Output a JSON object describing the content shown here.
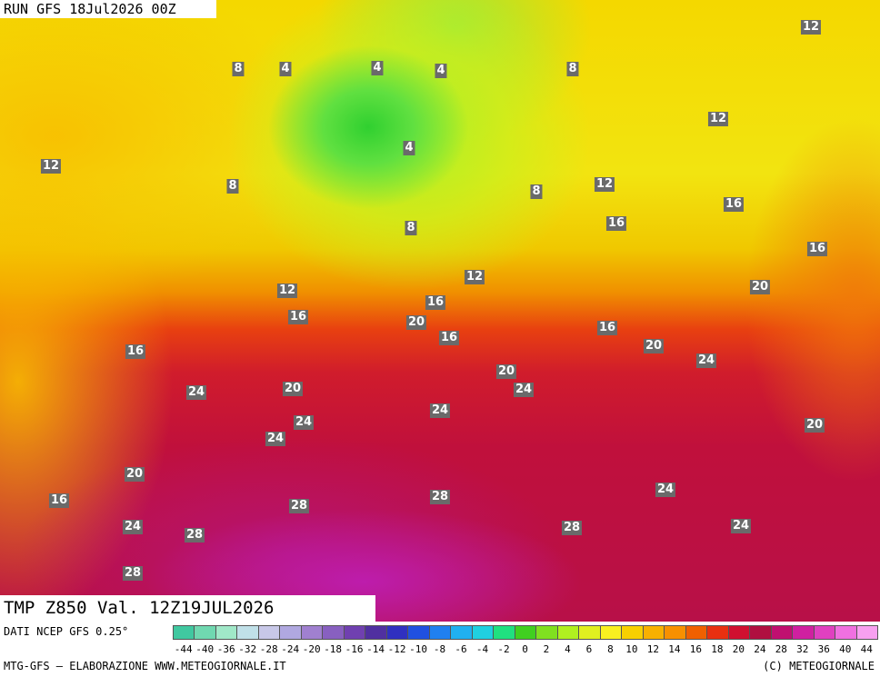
{
  "header": {
    "run": "RUN GFS 18Jul2026 00Z",
    "field": "TMP Z850 Val. 12Z19JUL2026"
  },
  "contour_labels": [
    12,
    8,
    4,
    4,
    4,
    8,
    12,
    12,
    4,
    8,
    8,
    12,
    16,
    8,
    16,
    16,
    12,
    12,
    16,
    20,
    16,
    20,
    16,
    16,
    16,
    20,
    24,
    24,
    20,
    20,
    24,
    24,
    24,
    24,
    20,
    20,
    24,
    28,
    16,
    28,
    24,
    28,
    28,
    24,
    28
  ],
  "scale": {
    "ticks": [
      -44,
      -40,
      -36,
      -32,
      -28,
      -24,
      -20,
      -18,
      -16,
      -14,
      -12,
      -10,
      -8,
      -6,
      -4,
      -2,
      0,
      2,
      4,
      6,
      8,
      10,
      12,
      14,
      16,
      18,
      20,
      24,
      28,
      32,
      36,
      40,
      44
    ],
    "colors": [
      "#40c8a0",
      "#70d8b0",
      "#a0e8c8",
      "#c0e0e8",
      "#c8c8e8",
      "#b0a8e0",
      "#a080d0",
      "#8860c0",
      "#7040b0",
      "#5030a0",
      "#3030c0",
      "#2050e0",
      "#2080f0",
      "#20b0f0",
      "#20d0e0",
      "#20e080",
      "#40d020",
      "#80e020",
      "#b0f020",
      "#e0f020",
      "#f8f020",
      "#f8d000",
      "#f8b000",
      "#f89000",
      "#f06000",
      "#e83010",
      "#d01030",
      "#b01040",
      "#c01070",
      "#d020a0",
      "#e040c0",
      "#f070e0",
      "#f8a0f0"
    ]
  },
  "footer": {
    "source": "DATI NCEP GFS 0.25°",
    "credits": "MTG-GFS — ELABORAZIONE WWW.METEOGIORNALE.IT",
    "copyright": "(C) METEOGIORNALE"
  }
}
